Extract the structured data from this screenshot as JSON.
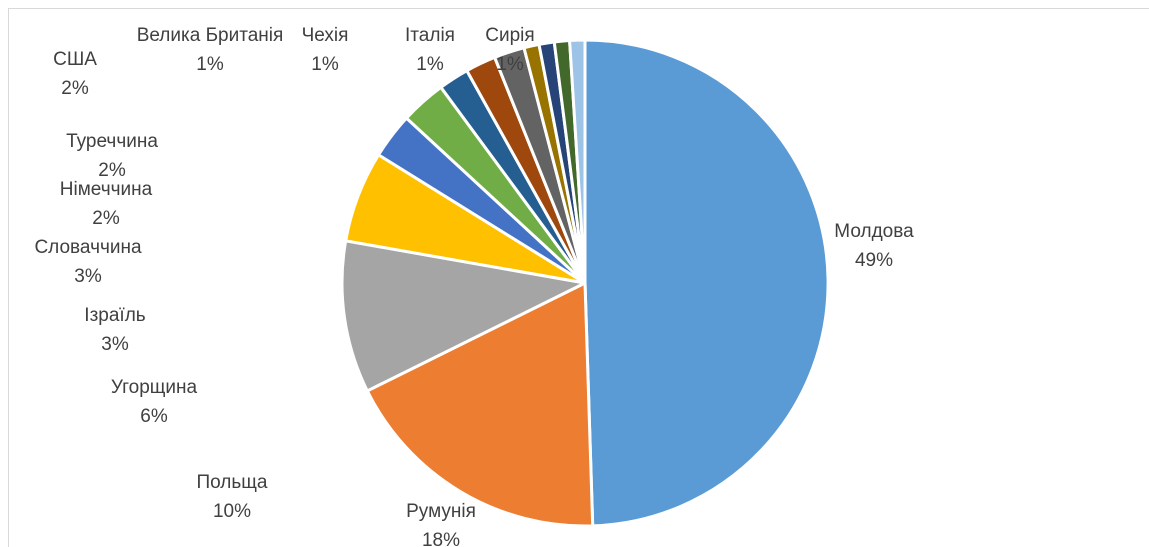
{
  "chart_data": {
    "type": "pie",
    "title": "",
    "legend": "none",
    "slices": [
      {
        "label": "Молдова",
        "value": 49,
        "pct_label": "49%",
        "color": "#5b9bd5"
      },
      {
        "label": "Румунія",
        "value": 18,
        "pct_label": "18%",
        "color": "#ed7d31"
      },
      {
        "label": "Польща",
        "value": 10,
        "pct_label": "10%",
        "color": "#a5a5a5"
      },
      {
        "label": "Угорщина",
        "value": 6,
        "pct_label": "6%",
        "color": "#ffc000"
      },
      {
        "label": "Ізраїль",
        "value": 3,
        "pct_label": "3%",
        "color": "#4472c4"
      },
      {
        "label": "Словаччина",
        "value": 3,
        "pct_label": "3%",
        "color": "#70ad47"
      },
      {
        "label": "Німеччина",
        "value": 2,
        "pct_label": "2%",
        "color": "#255e91"
      },
      {
        "label": "Туреччина",
        "value": 2,
        "pct_label": "2%",
        "color": "#9e480e"
      },
      {
        "label": "США",
        "value": 2,
        "pct_label": "2%",
        "color": "#636363"
      },
      {
        "label": "Велика Британія",
        "value": 1,
        "pct_label": "1%",
        "color": "#997300"
      },
      {
        "label": "Чехія",
        "value": 1,
        "pct_label": "1%",
        "color": "#264478"
      },
      {
        "label": "Італія",
        "value": 1,
        "pct_label": "1%",
        "color": "#43682b"
      },
      {
        "label": "Сирія",
        "value": 1,
        "pct_label": "1%",
        "color": "#9dc3e6"
      }
    ]
  }
}
